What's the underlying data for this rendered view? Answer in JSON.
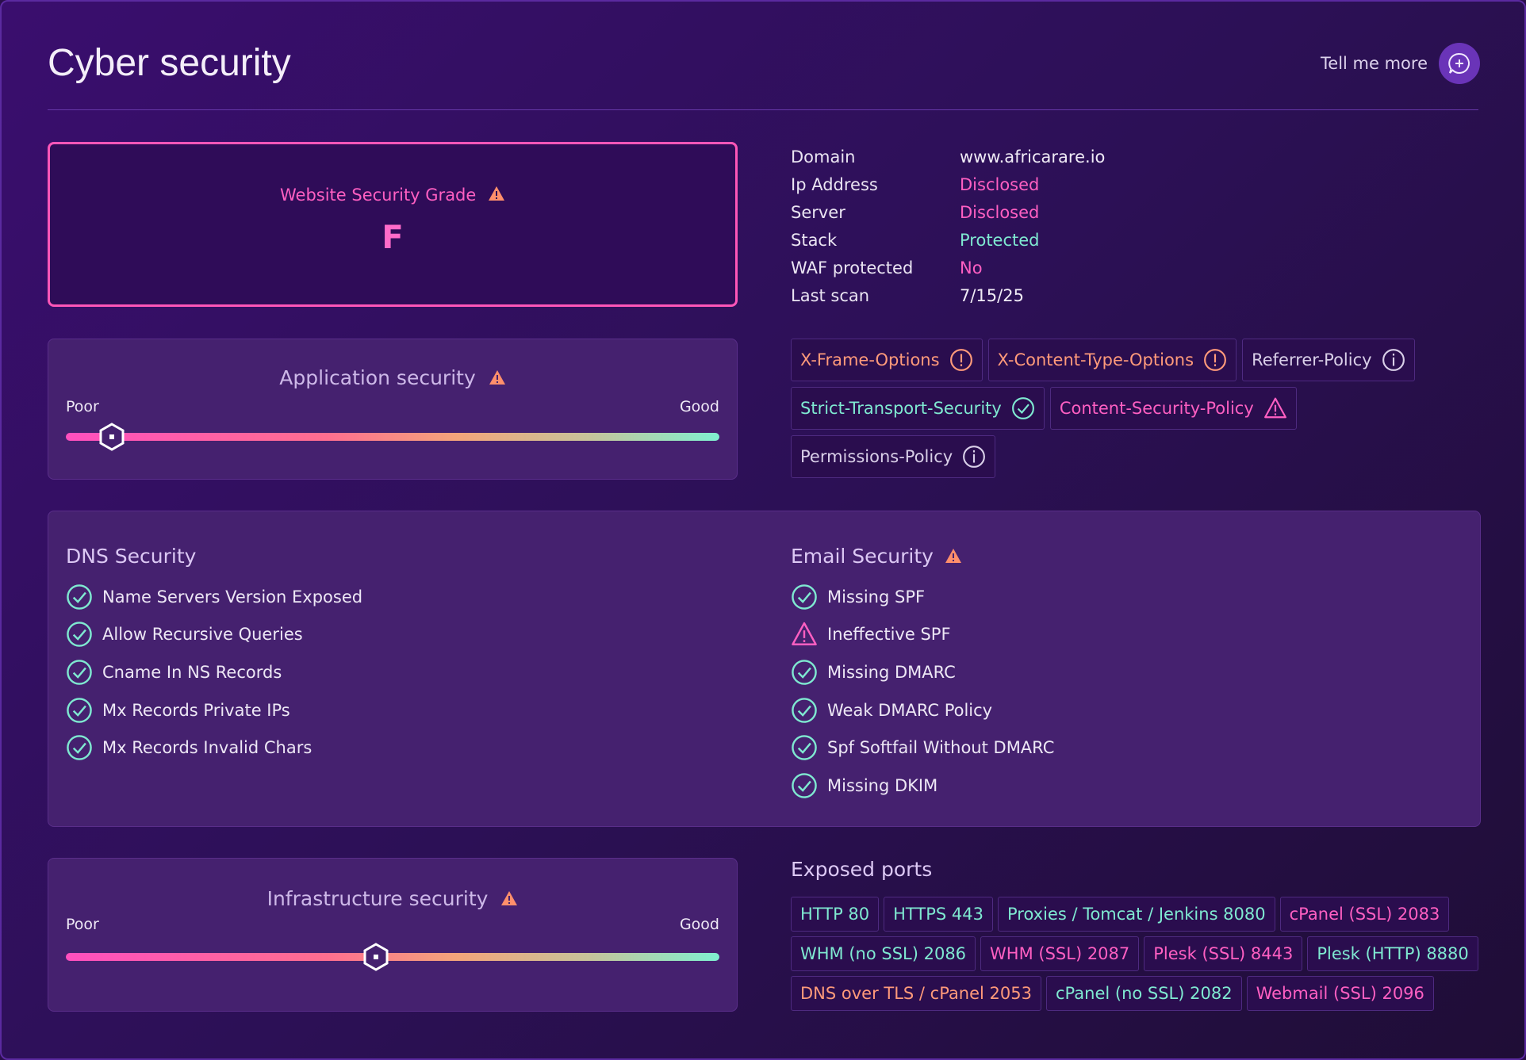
{
  "header": {
    "title": "Cyber security",
    "tell_more": "Tell me more"
  },
  "grade": {
    "label": "Website Security Grade",
    "value": "F"
  },
  "application": {
    "title": "Application security",
    "poor": "Poor",
    "good": "Good",
    "level": 0.07
  },
  "infrastructure": {
    "title": "Infrastructure security",
    "poor": "Poor",
    "good": "Good",
    "level": 0.475
  },
  "info": [
    {
      "key": "Domain",
      "value": "www.africarare.io",
      "color": "#f0ebf6"
    },
    {
      "key": "Ip Address",
      "value": "Disclosed",
      "color": "#ff5fc2"
    },
    {
      "key": "Server",
      "value": "Disclosed",
      "color": "#ff5fc2"
    },
    {
      "key": "Stack",
      "value": "Protected",
      "color": "#7fe9d1"
    },
    {
      "key": "WAF protected",
      "value": "No",
      "color": "#ff5fc2"
    },
    {
      "key": "Last scan",
      "value": "7/15/25",
      "color": "#f0ebf6"
    }
  ],
  "headers_chips": [
    {
      "label": "X-Frame-Options",
      "icon": "exclamation-circle-icon",
      "color": "#ff9a7a"
    },
    {
      "label": "X-Content-Type-Options",
      "icon": "exclamation-circle-icon",
      "color": "#ff9a7a"
    },
    {
      "label": "Referrer-Policy",
      "icon": "info-circle-icon",
      "color": "#d9cfe8"
    },
    {
      "label": "Strict-Transport-Security",
      "icon": "check-circle-icon",
      "color": "#7fe9d1"
    },
    {
      "label": "Content-Security-Policy",
      "icon": "warning-triangle-icon",
      "color": "#ff5fc2"
    },
    {
      "label": "Permissions-Policy",
      "icon": "info-circle-icon",
      "color": "#d9cfe8"
    }
  ],
  "dns": {
    "title": "DNS Security",
    "items": [
      {
        "label": "Name Servers Version Exposed",
        "status": "check"
      },
      {
        "label": "Allow Recursive Queries",
        "status": "check"
      },
      {
        "label": "Cname In NS Records",
        "status": "check"
      },
      {
        "label": "Mx Records Private IPs",
        "status": "check"
      },
      {
        "label": "Mx Records Invalid Chars",
        "status": "check"
      }
    ]
  },
  "email": {
    "title": "Email Security",
    "items": [
      {
        "label": "Missing SPF",
        "status": "check"
      },
      {
        "label": "Ineffective SPF",
        "status": "warning"
      },
      {
        "label": "Missing DMARC",
        "status": "check"
      },
      {
        "label": "Weak DMARC Policy",
        "status": "check"
      },
      {
        "label": "Spf Softfail Without DMARC",
        "status": "check"
      },
      {
        "label": "Missing DKIM",
        "status": "check"
      }
    ]
  },
  "ports": {
    "title": "Exposed ports",
    "items": [
      {
        "label": "HTTP 80",
        "color": "#7fe9d1"
      },
      {
        "label": "HTTPS 443",
        "color": "#7fe9d1"
      },
      {
        "label": "Proxies / Tomcat / Jenkins 8080",
        "color": "#7fe9d1"
      },
      {
        "label": "cPanel (SSL) 2083",
        "color": "#ff5fc2"
      },
      {
        "label": "WHM (no SSL) 2086",
        "color": "#7fe9d1"
      },
      {
        "label": "WHM (SSL) 2087",
        "color": "#ff5fc2"
      },
      {
        "label": "Plesk (SSL) 8443",
        "color": "#ff5fc2"
      },
      {
        "label": "Plesk (HTTP) 8880",
        "color": "#7fe9d1"
      },
      {
        "label": "DNS over TLS / cPanel 2053",
        "color": "#ff9a7a"
      },
      {
        "label": "cPanel (no SSL) 2082",
        "color": "#7fe9d1"
      },
      {
        "label": "Webmail (SSL) 2096",
        "color": "#ff5fc2"
      }
    ]
  },
  "colors": {
    "pink": "#ff5fc2",
    "teal": "#7fe9d1",
    "orange": "#ff9a7a",
    "warning_icon": "#ff8f6b"
  }
}
